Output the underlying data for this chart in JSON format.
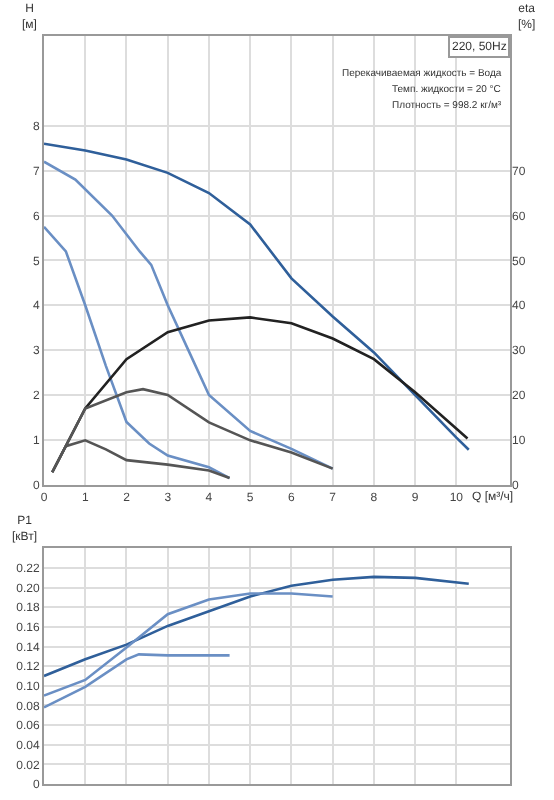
{
  "chart_data": [
    {
      "type": "line",
      "xlabel": "Q [м³/ч]",
      "ylabel": "H [м]",
      "y2label": "eta [%]",
      "xlim": [
        0,
        11.3
      ],
      "xticks": [
        0,
        1,
        2,
        3,
        4,
        5,
        6,
        7,
        8,
        9,
        10
      ],
      "ylim": [
        0,
        10
      ],
      "yticks": [
        0,
        1,
        2,
        3,
        4,
        5,
        6,
        7,
        8
      ],
      "y2lim": [
        0,
        100
      ],
      "y2ticks": [
        0,
        10,
        20,
        30,
        40,
        50,
        60,
        70
      ],
      "grid": true,
      "marker": "none",
      "line_style": "solid",
      "annotations": [
        "220, 50Hz",
        "Перекачиваемая жидкость = Вода",
        "Темп. жидкости = 20 °C",
        "Плотность = 998.2 кг/м³"
      ],
      "series": [
        {
          "color": "#2f5f9a",
          "x": [
            0,
            1,
            2,
            3,
            4,
            5,
            6,
            7,
            8,
            9,
            10,
            10.3
          ],
          "values": [
            7.6,
            7.45,
            7.25,
            6.95,
            6.5,
            5.8,
            4.6,
            3.75,
            2.95,
            2.0,
            1.05,
            0.78
          ]
        },
        {
          "color": "#6a8fc4",
          "x": [
            0,
            0.76,
            1.65,
            2.32,
            2.6,
            3,
            3.5,
            4,
            5,
            6,
            7
          ],
          "values": [
            7.2,
            6.8,
            6.0,
            5.2,
            4.9,
            4.0,
            3.0,
            2.0,
            1.2,
            0.8,
            0.36
          ]
        },
        {
          "color": "#6a8fc4",
          "x": [
            0,
            0.53,
            1,
            1.5,
            2,
            2.55,
            3,
            4,
            4.5
          ],
          "values": [
            5.75,
            5.2,
            4.0,
            2.65,
            1.4,
            0.92,
            0.65,
            0.39,
            0.15
          ]
        },
        {
          "color": "#222222",
          "axis": "y2",
          "x": [
            0.2,
            1,
            2,
            3,
            4,
            5,
            6,
            7,
            8,
            9,
            10.27
          ],
          "values": [
            2.8,
            17,
            28,
            34,
            36.6,
            37.3,
            36,
            32.6,
            28,
            20.6,
            10.3
          ]
        },
        {
          "color": "#555555",
          "axis": "y2",
          "x": [
            0.2,
            1,
            2,
            2.4,
            3,
            4,
            5,
            6,
            7
          ],
          "values": [
            2.8,
            17,
            20.6,
            21.3,
            20,
            13.9,
            9.9,
            7.2,
            3.6
          ]
        },
        {
          "color": "#555555",
          "axis": "y2",
          "x": [
            0.2,
            0.53,
            1,
            1.5,
            2,
            3,
            4,
            4.5
          ],
          "values": [
            2.8,
            8.6,
            9.9,
            7.9,
            5.5,
            4.5,
            3.2,
            1.5
          ]
        }
      ]
    },
    {
      "type": "line",
      "ylabel": "P1 [кВт]",
      "xlim": [
        0,
        11.3
      ],
      "xticks": [
        0,
        1,
        2,
        3,
        4,
        5,
        6,
        7,
        8,
        9,
        10
      ],
      "ylim": [
        0,
        0.24
      ],
      "yticks": [
        0,
        {
          "value": 0.02,
          "label": "0.02"
        },
        {
          "value": 0.04,
          "label": "0.04"
        },
        {
          "value": 0.06,
          "label": "0.06"
        },
        {
          "value": 0.08,
          "label": "0.08"
        },
        {
          "value": 0.1,
          "label": "0.10"
        },
        {
          "value": 0.12,
          "label": "0.12"
        },
        {
          "value": 0.14,
          "label": "0.14"
        },
        {
          "value": 0.16,
          "label": "0.16"
        },
        {
          "value": 0.18,
          "label": "0.18"
        },
        {
          "value": 0.2,
          "label": "0.20"
        },
        {
          "value": 0.22,
          "label": "0.22"
        }
      ],
      "tick_labels": "y",
      "grid": true,
      "marker": "none",
      "line_style": "solid",
      "series": [
        {
          "color": "#2f5f9a",
          "x": [
            0,
            1,
            2,
            3,
            4,
            5,
            6,
            7,
            8,
            9,
            10.3
          ],
          "values": [
            0.11,
            0.127,
            0.142,
            0.161,
            0.176,
            0.191,
            0.202,
            0.208,
            0.211,
            0.21,
            0.204
          ]
        },
        {
          "color": "#6a8fc4",
          "x": [
            0,
            1,
            2,
            3,
            4,
            5,
            6,
            7
          ],
          "values": [
            0.09,
            0.106,
            0.139,
            0.173,
            0.188,
            0.194,
            0.194,
            0.191
          ]
        },
        {
          "color": "#6a8fc4",
          "x": [
            0,
            1,
            2,
            2.3,
            3,
            4.5
          ],
          "values": [
            0.078,
            0.099,
            0.127,
            0.132,
            0.131,
            0.131
          ]
        }
      ]
    }
  ]
}
